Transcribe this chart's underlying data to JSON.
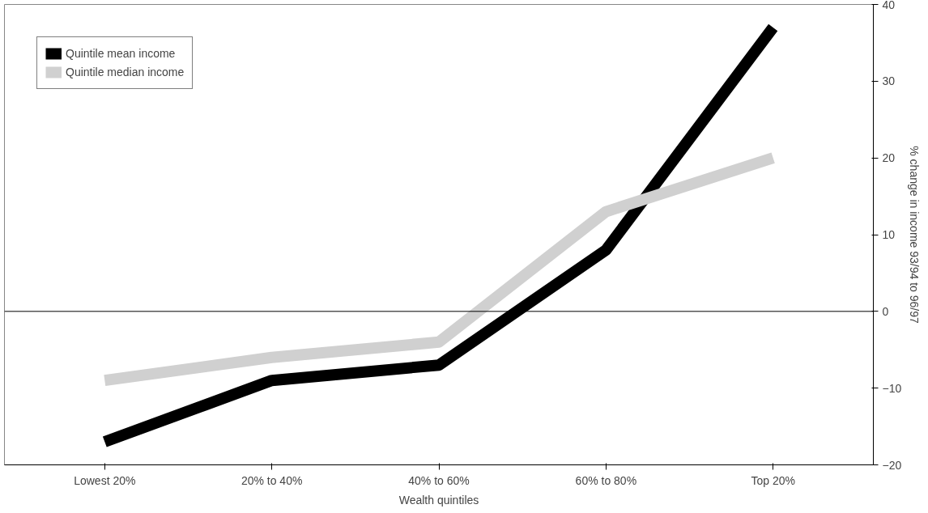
{
  "chart_data": {
    "type": "line",
    "xlabel": "Wealth quintiles",
    "ylabel": "% change in income 93/94 to 96/97",
    "categories": [
      "Lowest 20%",
      "20% to 40%",
      "40% to 60%",
      "60% to 80%",
      "Top 20%"
    ],
    "series": [
      {
        "name": "Quintile mean income",
        "color": "#000000",
        "values": [
          -17,
          -9,
          -7,
          8,
          37
        ]
      },
      {
        "name": "Quintile median income",
        "color": "#d0d0d0",
        "values": [
          -9,
          -6,
          -4,
          13,
          20
        ]
      }
    ],
    "ylim": [
      -20,
      40
    ],
    "yticks": [
      -20,
      -10,
      0,
      10,
      20,
      30,
      40
    ],
    "ref_lines": [
      {
        "axis": "y",
        "value": 0
      }
    ],
    "legend": "top left",
    "grid": false,
    "marker": "none"
  }
}
